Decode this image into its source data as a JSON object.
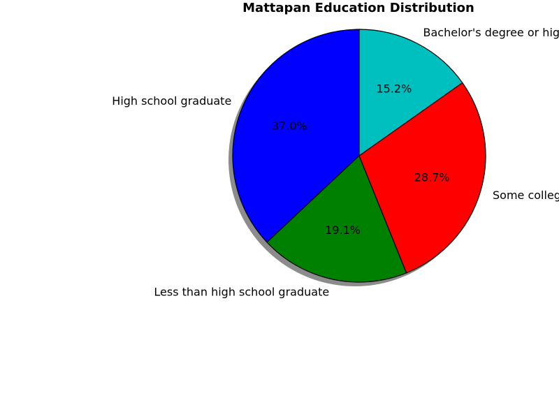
{
  "chart_data": {
    "type": "pie",
    "title": "Mattapan Education Distribution",
    "start_angle_deg": 90,
    "direction": "counterclockwise",
    "shadow": true,
    "categories": [
      "High school graduate",
      "Less than high school graduate",
      "Some college",
      "Bachelor's degree or higher"
    ],
    "values": [
      37.0,
      19.1,
      28.7,
      15.2
    ],
    "percent_labels": [
      "37.0%",
      "19.1%",
      "28.7%",
      "15.2%"
    ],
    "colors": [
      "#0000ff",
      "#008000",
      "#ff0000",
      "#00bfbf"
    ]
  }
}
